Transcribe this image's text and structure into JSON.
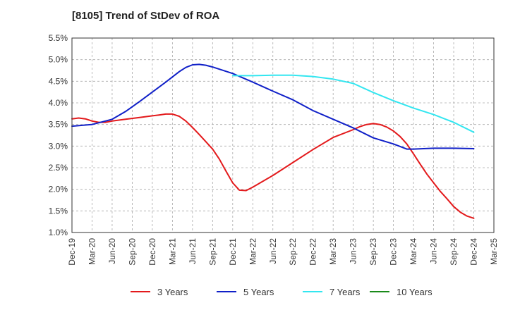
{
  "chart_data": {
    "type": "line",
    "title": "[8105]  Trend of StDev of ROA",
    "xlabel": "",
    "ylabel": "",
    "x_ticks": [
      "Dec-19",
      "Mar-20",
      "Jun-20",
      "Sep-20",
      "Dec-20",
      "Mar-21",
      "Jun-21",
      "Sep-21",
      "Dec-21",
      "Mar-22",
      "Jun-22",
      "Sep-22",
      "Dec-22",
      "Mar-23",
      "Jun-23",
      "Sep-23",
      "Dec-23",
      "Mar-24",
      "Jun-24",
      "Sep-24",
      "Dec-24",
      "Mar-25"
    ],
    "y_ticks": [
      "1.0%",
      "1.5%",
      "2.0%",
      "2.5%",
      "3.0%",
      "3.5%",
      "4.0%",
      "4.5%",
      "5.0%",
      "5.5%"
    ],
    "ylim": [
      1.0,
      5.5
    ],
    "grid": "dashed",
    "legend_position": "bottom",
    "series": [
      {
        "name": "3 Years",
        "color": "#e31a1c",
        "points": [
          [
            "Dec-19",
            3.63
          ],
          [
            "Jan-20",
            3.65
          ],
          [
            "Feb-20",
            3.63
          ],
          [
            "Mar-20",
            3.58
          ],
          [
            "Apr-20",
            3.55
          ],
          [
            "May-20",
            3.55
          ],
          [
            "Jun-20",
            3.58
          ],
          [
            "Aug-20",
            3.62
          ],
          [
            "Oct-20",
            3.66
          ],
          [
            "Dec-20",
            3.7
          ],
          [
            "Jan-21",
            3.72
          ],
          [
            "Feb-21",
            3.74
          ],
          [
            "Mar-21",
            3.74
          ],
          [
            "Apr-21",
            3.69
          ],
          [
            "May-21",
            3.58
          ],
          [
            "Jun-21",
            3.43
          ],
          [
            "Jul-21",
            3.27
          ],
          [
            "Aug-21",
            3.1
          ],
          [
            "Sep-21",
            2.93
          ],
          [
            "Oct-21",
            2.7
          ],
          [
            "Nov-21",
            2.42
          ],
          [
            "Dec-21",
            2.15
          ],
          [
            "Jan-22",
            1.98
          ],
          [
            "Feb-22",
            1.97
          ],
          [
            "Mar-22",
            2.05
          ],
          [
            "Jun-22",
            2.32
          ],
          [
            "Sep-22",
            2.62
          ],
          [
            "Dec-22",
            2.92
          ],
          [
            "Mar-23",
            3.2
          ],
          [
            "Jun-23",
            3.38
          ],
          [
            "Jul-23",
            3.45
          ],
          [
            "Aug-23",
            3.5
          ],
          [
            "Sep-23",
            3.52
          ],
          [
            "Oct-23",
            3.5
          ],
          [
            "Nov-23",
            3.44
          ],
          [
            "Dec-23",
            3.35
          ],
          [
            "Jan-24",
            3.22
          ],
          [
            "Feb-24",
            3.05
          ],
          [
            "Mar-24",
            2.82
          ],
          [
            "Apr-24",
            2.58
          ],
          [
            "May-24",
            2.35
          ],
          [
            "Jun-24",
            2.15
          ],
          [
            "Jul-24",
            1.95
          ],
          [
            "Aug-24",
            1.78
          ],
          [
            "Sep-24",
            1.6
          ],
          [
            "Oct-24",
            1.47
          ],
          [
            "Nov-24",
            1.38
          ],
          [
            "Dec-24",
            1.33
          ]
        ]
      },
      {
        "name": "5 Years",
        "color": "#1020c8",
        "points": [
          [
            "Dec-19",
            3.46
          ],
          [
            "Mar-20",
            3.5
          ],
          [
            "Jun-20",
            3.62
          ],
          [
            "Aug-20",
            3.8
          ],
          [
            "Oct-20",
            4.02
          ],
          [
            "Dec-20",
            4.25
          ],
          [
            "Feb-21",
            4.48
          ],
          [
            "Apr-21",
            4.72
          ],
          [
            "May-21",
            4.82
          ],
          [
            "Jun-21",
            4.88
          ],
          [
            "Jul-21",
            4.89
          ],
          [
            "Aug-21",
            4.87
          ],
          [
            "Sep-21",
            4.83
          ],
          [
            "Dec-21",
            4.68
          ],
          [
            "Mar-22",
            4.48
          ],
          [
            "Jun-22",
            4.27
          ],
          [
            "Sep-22",
            4.07
          ],
          [
            "Dec-22",
            3.82
          ],
          [
            "Mar-23",
            3.62
          ],
          [
            "Jun-23",
            3.42
          ],
          [
            "Sep-23",
            3.19
          ],
          [
            "Dec-23",
            3.05
          ],
          [
            "Feb-24",
            2.93
          ],
          [
            "Mar-24",
            2.93
          ],
          [
            "Jun-24",
            2.95
          ],
          [
            "Sep-24",
            2.95
          ],
          [
            "Dec-24",
            2.94
          ]
        ]
      },
      {
        "name": "7 Years",
        "color": "#33e6f0",
        "points": [
          [
            "Dec-21",
            4.63
          ],
          [
            "Mar-22",
            4.63
          ],
          [
            "Jun-22",
            4.64
          ],
          [
            "Sep-22",
            4.64
          ],
          [
            "Dec-22",
            4.61
          ],
          [
            "Mar-23",
            4.55
          ],
          [
            "Jun-23",
            4.45
          ],
          [
            "Sep-23",
            4.24
          ],
          [
            "Dec-23",
            4.05
          ],
          [
            "Mar-24",
            3.88
          ],
          [
            "Jun-24",
            3.73
          ],
          [
            "Sep-24",
            3.55
          ],
          [
            "Dec-24",
            3.32
          ]
        ]
      },
      {
        "name": "10 Years",
        "color": "#1a8a1a",
        "points": []
      }
    ]
  }
}
